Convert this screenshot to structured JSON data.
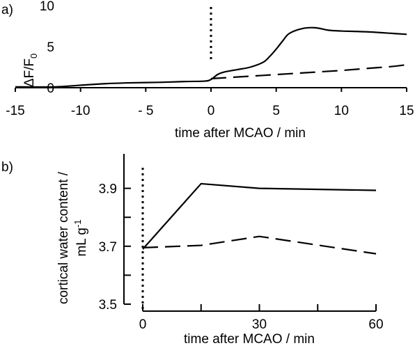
{
  "chart_data": [
    {
      "panel_label": "a)",
      "type": "line",
      "xlabel": "time after MCAO / min",
      "ylabel_main": "ΔF/F",
      "ylabel_sub": "0",
      "xlim": [
        -15,
        15
      ],
      "ylim": [
        0,
        10
      ],
      "xticks": [
        -15,
        -10,
        -5,
        0,
        5,
        10,
        15
      ],
      "xtick_labels": [
        "-15",
        "-10",
        "- 5",
        "0",
        "5",
        "10",
        "15"
      ],
      "yticks": [
        0,
        5,
        10
      ],
      "ytick_labels": [
        "0",
        "5",
        "10"
      ],
      "event_line_x": 0,
      "series": [
        {
          "style": "solid",
          "x": [
            -15,
            -12,
            -10,
            -8,
            -6,
            -4,
            -2,
            -0.5,
            0,
            0.5,
            1,
            2,
            3,
            4,
            4.5,
            5,
            5.5,
            6,
            7,
            8,
            9,
            10,
            12,
            14,
            15
          ],
          "y": [
            0.1,
            0.1,
            0.3,
            0.5,
            0.6,
            0.65,
            0.75,
            0.8,
            1.0,
            1.6,
            1.9,
            2.2,
            2.5,
            3.1,
            3.8,
            4.7,
            5.7,
            6.6,
            7.2,
            7.3,
            7.0,
            6.9,
            6.8,
            6.6,
            6.5
          ]
        },
        {
          "style": "dashed",
          "x": [
            0,
            2,
            4,
            6,
            8,
            10,
            12,
            14,
            15
          ],
          "y": [
            1.1,
            1.3,
            1.5,
            1.7,
            1.9,
            2.1,
            2.35,
            2.6,
            2.8
          ]
        }
      ]
    },
    {
      "panel_label": "b)",
      "type": "line",
      "xlabel": "time after MCAO / min",
      "ylabel_line1": "cortical water content /",
      "ylabel_line2": "mL g",
      "ylabel_sup": "-1",
      "xlim": [
        0,
        60
      ],
      "ylim": [
        3.5,
        4.0
      ],
      "xticks": [
        0,
        15,
        30,
        45,
        60
      ],
      "xtick_labels": [
        "0",
        "",
        "30",
        "",
        "60"
      ],
      "yticks": [
        3.5,
        3.6,
        3.7,
        3.8,
        3.9
      ],
      "ytick_labels": [
        "3.5",
        "",
        "3.7",
        "",
        "3.9"
      ],
      "event_line_x": 0,
      "series": [
        {
          "style": "solid",
          "x": [
            0,
            15,
            30,
            60
          ],
          "y": [
            3.69,
            3.916,
            3.9,
            3.893
          ]
        },
        {
          "style": "dashed",
          "x": [
            0,
            15,
            30,
            60
          ],
          "y": [
            3.695,
            3.703,
            3.734,
            3.674
          ]
        }
      ]
    }
  ]
}
